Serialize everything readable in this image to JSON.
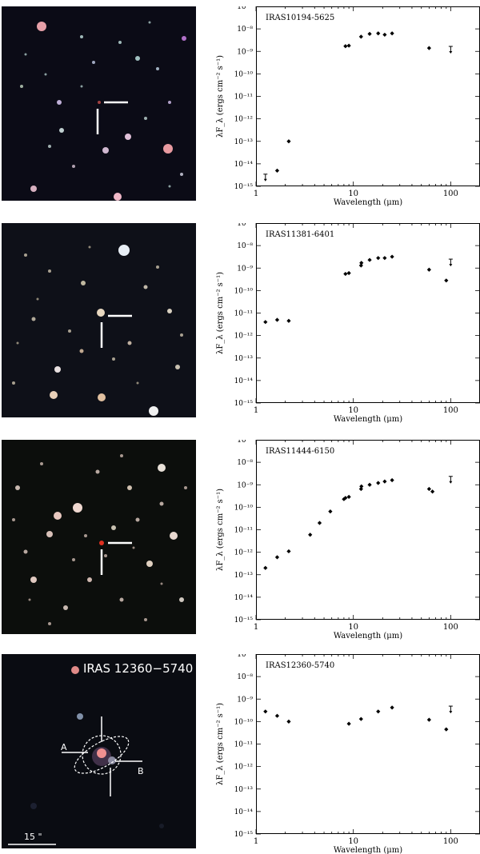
{
  "axis_labels": {
    "xlabel": "Wavelength (μm)",
    "ylabel": "λF_λ (ergs cm⁻² s⁻¹)"
  },
  "panels": [
    {
      "sed_label": "IRAS10194-5625",
      "image_overlay_text": ""
    },
    {
      "sed_label": "IRAS11381-6401",
      "image_overlay_text": ""
    },
    {
      "sed_label": "IRAS11444-6150",
      "image_overlay_text": ""
    },
    {
      "sed_label": "IRAS12360-5740",
      "image_overlay_text": "IRAS 12360−5740",
      "marker_a": "A",
      "marker_b": "B",
      "scale_label": "15 \""
    }
  ],
  "chart_data": [
    {
      "type": "scatter",
      "title": "IRAS10194-5625",
      "xlabel": "Wavelength (μm)",
      "ylabel": "λF_λ (ergs cm⁻² s⁻¹)",
      "xscale": "log",
      "yscale": "log",
      "xlim": [
        1,
        200
      ],
      "ylim": [
        1e-15,
        1e-07
      ],
      "x_ticks": [
        "1",
        "10",
        "100"
      ],
      "y_ticks": [
        "10⁻¹⁵",
        "10⁻¹⁴",
        "10⁻¹³",
        "10⁻¹²",
        "10⁻¹¹",
        "10⁻¹⁰",
        "10⁻⁹",
        "10⁻⁸",
        "10⁻⁷"
      ],
      "points": [
        {
          "x": 1.65,
          "y": 5e-15
        },
        {
          "x": 2.17,
          "y": 1e-13
        },
        {
          "x": 8.3,
          "y": 1.7e-09
        },
        {
          "x": 9.0,
          "y": 1.8e-09
        },
        {
          "x": 12,
          "y": 4.5e-09
        },
        {
          "x": 14.7,
          "y": 6e-09
        },
        {
          "x": 18,
          "y": 6.3e-09
        },
        {
          "x": 21,
          "y": 5.5e-09
        },
        {
          "x": 25,
          "y": 6.3e-09
        },
        {
          "x": 60,
          "y": 1.4e-09
        }
      ],
      "upper_limits": [
        {
          "x": 1.25,
          "y": 2.5e-15
        },
        {
          "x": 100,
          "y": 1.2e-09
        }
      ]
    },
    {
      "type": "scatter",
      "title": "IRAS11381-6401",
      "xlabel": "Wavelength (μm)",
      "ylabel": "λF_λ (ergs cm⁻² s⁻¹)",
      "xscale": "log",
      "yscale": "log",
      "xlim": [
        1,
        200
      ],
      "ylim": [
        1e-15,
        1e-07
      ],
      "x_ticks": [
        "1",
        "10",
        "100"
      ],
      "y_ticks": [
        "10⁻¹⁵",
        "10⁻¹⁴",
        "10⁻¹³",
        "10⁻¹²",
        "10⁻¹¹",
        "10⁻¹⁰",
        "10⁻⁹",
        "10⁻⁸",
        "10⁻⁷"
      ],
      "points": [
        {
          "x": 1.25,
          "y": 4e-12
        },
        {
          "x": 1.65,
          "y": 5e-12
        },
        {
          "x": 2.17,
          "y": 4.5e-12
        },
        {
          "x": 8.3,
          "y": 5.5e-10
        },
        {
          "x": 9.0,
          "y": 6e-10
        },
        {
          "x": 12,
          "y": 1.3e-09
        },
        {
          "x": 12.1,
          "y": 1.7e-09
        },
        {
          "x": 14.7,
          "y": 2.3e-09
        },
        {
          "x": 18,
          "y": 2.8e-09
        },
        {
          "x": 21,
          "y": 2.8e-09
        },
        {
          "x": 25,
          "y": 3.2e-09
        },
        {
          "x": 60,
          "y": 8.5e-10
        },
        {
          "x": 90,
          "y": 2.8e-10
        }
      ],
      "upper_limits": [
        {
          "x": 100,
          "y": 1.8e-09
        }
      ]
    },
    {
      "type": "scatter",
      "title": "IRAS11444-6150",
      "xlabel": "Wavelength (μm)",
      "ylabel": "λF_λ (ergs cm⁻² s⁻¹)",
      "xscale": "log",
      "yscale": "log",
      "xlim": [
        1,
        200
      ],
      "ylim": [
        1e-15,
        1e-07
      ],
      "x_ticks": [
        "1",
        "10",
        "100"
      ],
      "y_ticks": [
        "10⁻¹⁵",
        "10⁻¹⁴",
        "10⁻¹³",
        "10⁻¹²",
        "10⁻¹¹",
        "10⁻¹⁰",
        "10⁻⁹",
        "10⁻⁸",
        "10⁻⁷"
      ],
      "points": [
        {
          "x": 1.25,
          "y": 2e-13
        },
        {
          "x": 1.65,
          "y": 6e-13
        },
        {
          "x": 2.17,
          "y": 1.1e-12
        },
        {
          "x": 3.6,
          "y": 6e-12
        },
        {
          "x": 4.5,
          "y": 2e-11
        },
        {
          "x": 5.8,
          "y": 6.5e-11
        },
        {
          "x": 8.0,
          "y": 2.3e-10
        },
        {
          "x": 8.3,
          "y": 2.6e-10
        },
        {
          "x": 9.0,
          "y": 2.9e-10
        },
        {
          "x": 12,
          "y": 6.5e-10
        },
        {
          "x": 12.1,
          "y": 8.5e-10
        },
        {
          "x": 14.7,
          "y": 1e-09
        },
        {
          "x": 18,
          "y": 1.2e-09
        },
        {
          "x": 21,
          "y": 1.4e-09
        },
        {
          "x": 25,
          "y": 1.6e-09
        },
        {
          "x": 60,
          "y": 6.5e-10
        },
        {
          "x": 65,
          "y": 5e-10
        }
      ],
      "upper_limits": [
        {
          "x": 100,
          "y": 1.7e-09
        }
      ]
    },
    {
      "type": "scatter",
      "title": "IRAS12360-5740",
      "xlabel": "Wavelength (μm)",
      "ylabel": "λF_λ (ergs cm⁻² s⁻¹)",
      "xscale": "log",
      "yscale": "log",
      "xlim": [
        1,
        200
      ],
      "ylim": [
        1e-15,
        1e-07
      ],
      "x_ticks": [
        "1",
        "10",
        "100"
      ],
      "y_ticks": [
        "10⁻¹⁵",
        "10⁻¹⁴",
        "10⁻¹³",
        "10⁻¹²",
        "10⁻¹¹",
        "10⁻¹⁰",
        "10⁻⁹",
        "10⁻⁸",
        "10⁻⁷"
      ],
      "points": [
        {
          "x": 1.25,
          "y": 2.8e-10
        },
        {
          "x": 1.65,
          "y": 1.8e-10
        },
        {
          "x": 2.17,
          "y": 1e-10
        },
        {
          "x": 9.0,
          "y": 8e-11
        },
        {
          "x": 12,
          "y": 1.3e-10
        },
        {
          "x": 18,
          "y": 2.8e-10
        },
        {
          "x": 25,
          "y": 4.2e-10
        },
        {
          "x": 60,
          "y": 1.2e-10
        },
        {
          "x": 90,
          "y": 4.5e-11
        }
      ],
      "upper_limits": [
        {
          "x": 100,
          "y": 3.5e-10
        }
      ]
    }
  ]
}
